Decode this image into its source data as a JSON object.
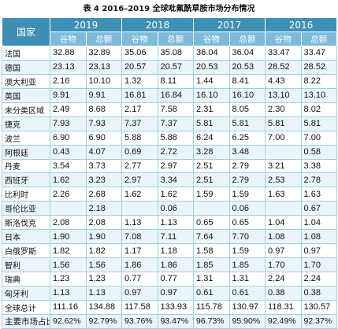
{
  "caption": "表 4  2016–2019 全球吡氟酰草胺市场分布情况",
  "header": {
    "country_label": "国家",
    "years": [
      "2019",
      "2018",
      "2017",
      "2016"
    ],
    "sub_labels": [
      "谷物",
      "总额"
    ]
  },
  "rows": [
    {
      "country": "法国",
      "values": [
        "32.88",
        "32.89",
        "35.06",
        "35.08",
        "36.04",
        "36.04",
        "33.47",
        "33.47"
      ]
    },
    {
      "country": "德国",
      "values": [
        "23.13",
        "23.13",
        "20.57",
        "20.57",
        "20.53",
        "20.53",
        "28.52",
        "28.52"
      ]
    },
    {
      "country": "澳大利亚",
      "values": [
        "2.16",
        "10.10",
        "1.32",
        "8.11",
        "1.44",
        "8.41",
        "4.43",
        "8.22"
      ]
    },
    {
      "country": "英国",
      "values": [
        "9.91",
        "9.91",
        "16.81",
        "16.84",
        "16.10",
        "16.10",
        "13.10",
        "13.10"
      ]
    },
    {
      "country": "未分类区域",
      "values": [
        "2.49",
        "8.68",
        "2.17",
        "7.58",
        "2.31",
        "8.05",
        "2.30",
        "8.02"
      ]
    },
    {
      "country": "捷克",
      "values": [
        "7.93",
        "7.93",
        "7.37",
        "7.37",
        "5.81",
        "5.81",
        "5.81",
        "5.81"
      ]
    },
    {
      "country": "波兰",
      "values": [
        "6.90",
        "6.90",
        "5.88",
        "5.88",
        "6.24",
        "6.25",
        "7.00",
        "7.00"
      ]
    },
    {
      "country": "阿根廷",
      "values": [
        "0.43",
        "4.07",
        "0.69",
        "2.72",
        "3.28",
        "3.48",
        "",
        "0.58"
      ]
    },
    {
      "country": "丹麦",
      "values": [
        "3.54",
        "3.73",
        "2.77",
        "2.97",
        "2.51",
        "2.79",
        "3.21",
        "3.38"
      ]
    },
    {
      "country": "西班牙",
      "values": [
        "1.62",
        "3.23",
        "2.97",
        "3.34",
        "2.51",
        "2.79",
        "2.53",
        "2.78"
      ]
    },
    {
      "country": "比利时",
      "values": [
        "2.26",
        "2.68",
        "1.62",
        "1.62",
        "1.59",
        "1.59",
        "1.63",
        "1.63"
      ]
    },
    {
      "country": "哥伦比亚",
      "values": [
        "",
        "2.18",
        "",
        "0.06",
        "",
        "0.06",
        "",
        "0.67"
      ]
    },
    {
      "country": "斯洛伐克",
      "values": [
        "2.08",
        "2.08",
        "1.13",
        "1.13",
        "0.65",
        "0.65",
        "1.04",
        "1.04"
      ]
    },
    {
      "country": "日本",
      "values": [
        "1.90",
        "1.90",
        "7.08",
        "7.11",
        "7.64",
        "7.70",
        "1.08",
        "1.08"
      ]
    },
    {
      "country": "白俄罗斯",
      "values": [
        "1.82",
        "1.82",
        "1.17",
        "1.18",
        "1.58",
        "1.59",
        "0.97",
        "0.97"
      ]
    },
    {
      "country": "智利",
      "values": [
        "1.56",
        "1.56",
        "1.86",
        "1.86",
        "1.85",
        "1.85",
        "1.70",
        "1.70"
      ]
    },
    {
      "country": "瑞典",
      "values": [
        "1.23",
        "1.23",
        "0.77",
        "0.77",
        "1.31",
        "1.31",
        "2.24",
        "2.24"
      ]
    },
    {
      "country": "匈牙利",
      "values": [
        "1.13",
        "1.13",
        "0.97",
        "0.97",
        "0.61",
        "0.61",
        "0.38",
        "0.38"
      ]
    },
    {
      "country": "全球总计",
      "values": [
        "111.16",
        "134.88",
        "117.58",
        "133.93",
        "115.78",
        "130.97",
        "118.31",
        "130.57"
      ]
    },
    {
      "country": "主要市场占比",
      "values": [
        "92.62%",
        "92.79%",
        "93.76%",
        "93.47%",
        "96.73%",
        "95.90%",
        "92.49%",
        "92.37%"
      ]
    }
  ],
  "colors": {
    "header_dark": "#3d8fb6",
    "header_light": "#7dbbdd",
    "row_alt": "#e9f5fb",
    "grid": "#9fcfe6"
  }
}
